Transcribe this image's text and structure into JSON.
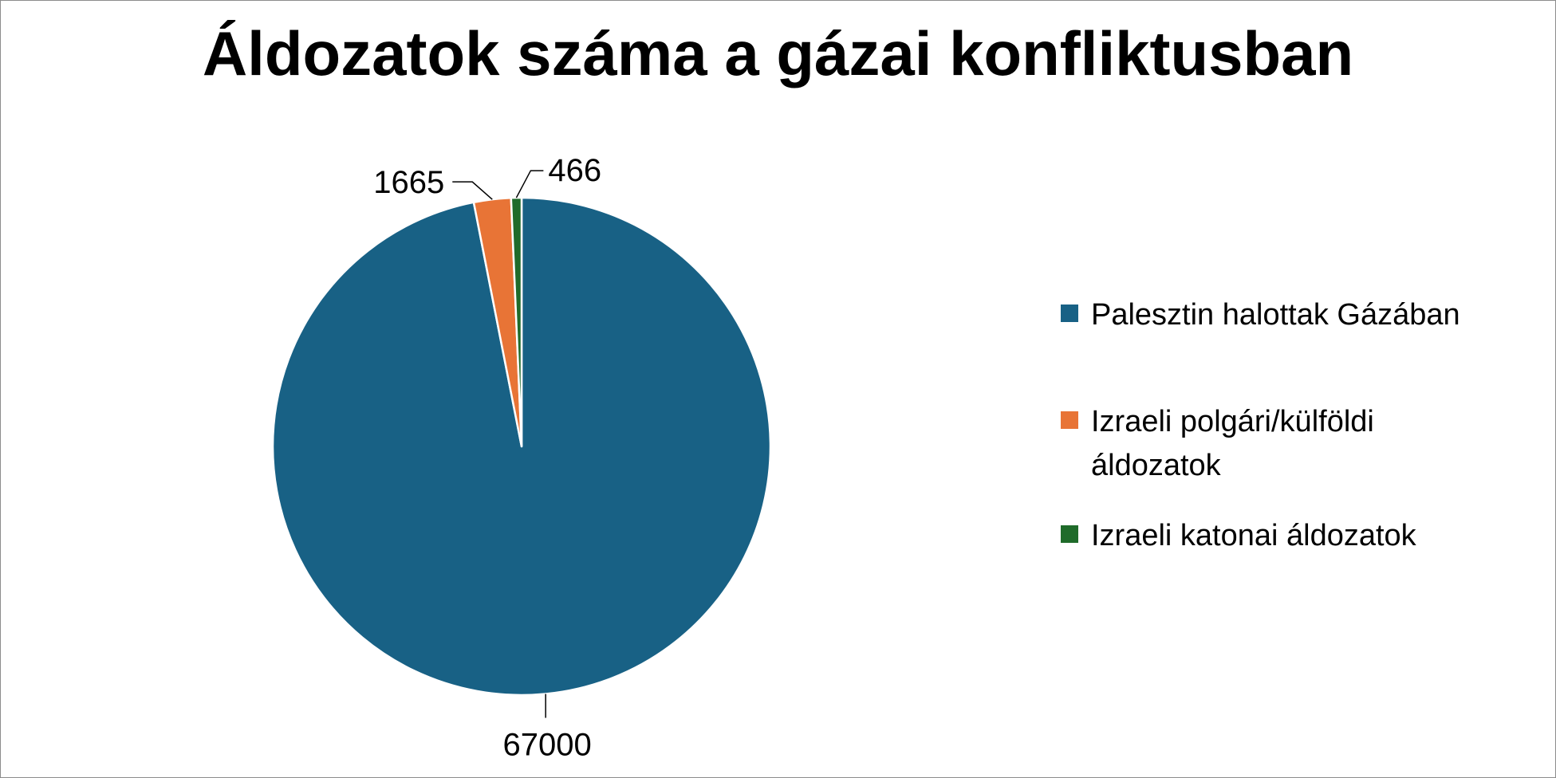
{
  "chart_data": {
    "type": "pie",
    "title": "Áldozatok száma a gázai konfliktusban",
    "categories": [
      "Palesztin halottak Gázában",
      "Izraeli polgári/külföldi áldozatok",
      "Izraeli katonai áldozatok"
    ],
    "values": [
      67000,
      1665,
      466
    ],
    "data_labels": [
      "67000",
      "1665",
      "466"
    ],
    "colors": [
      "#186185",
      "#E87436",
      "#1F6B2A"
    ],
    "legend_position": "right"
  }
}
